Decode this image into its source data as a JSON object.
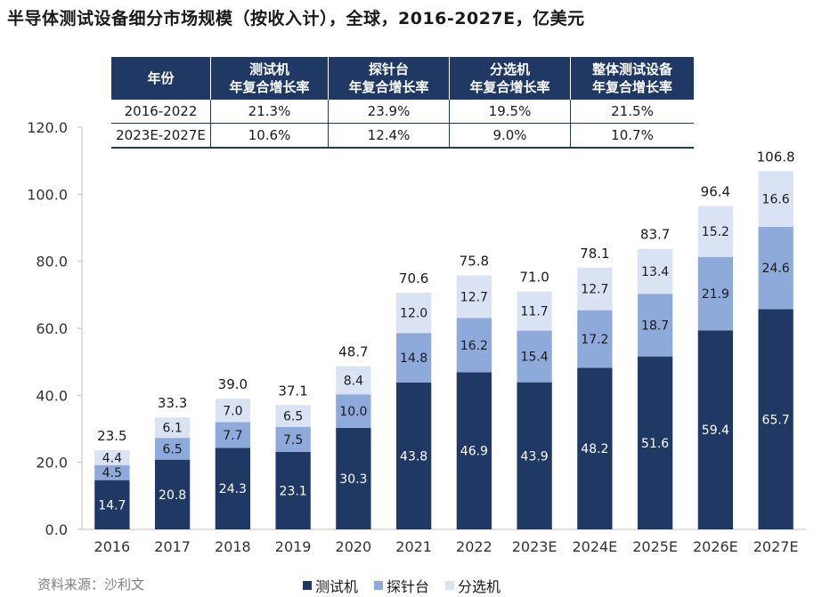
{
  "title": "半导体测试设备细分市场规模（按收入计），全球，2016-2027E，亿美元",
  "source": "资料来源：沙利文",
  "colors": {
    "tester": "#1f3864",
    "prober": "#8eaadb",
    "handler": "#dae3f3",
    "header_bg": "#1f3864"
  },
  "cagr_table": {
    "headers": [
      "年份",
      "测试机\n年复合增长率",
      "探针台\n年复合增长率",
      "分选机\n年复合增长率",
      "整体测试设备\n年复合增长率"
    ],
    "rows": [
      [
        "2016-2022",
        "21.3%",
        "23.9%",
        "19.5%",
        "21.5%"
      ],
      [
        "2023E-2027E",
        "10.6%",
        "12.4%",
        "9.0%",
        "10.7%"
      ]
    ]
  },
  "chart_data": {
    "type": "bar",
    "stacked": true,
    "categories": [
      "2016",
      "2017",
      "2018",
      "2019",
      "2020",
      "2021",
      "2022",
      "2023E",
      "2024E",
      "2025E",
      "2026E",
      "2027E"
    ],
    "series": [
      {
        "name": "测试机",
        "values": [
          14.7,
          20.8,
          24.3,
          23.1,
          30.3,
          43.8,
          46.9,
          43.9,
          48.2,
          51.6,
          59.4,
          65.7
        ]
      },
      {
        "name": "探针台",
        "values": [
          4.5,
          6.5,
          7.7,
          7.5,
          10.0,
          14.8,
          16.2,
          15.4,
          17.2,
          18.7,
          21.9,
          24.6
        ]
      },
      {
        "name": "分选机",
        "values": [
          4.4,
          6.1,
          7.0,
          6.5,
          8.4,
          12.0,
          12.7,
          11.7,
          12.7,
          13.4,
          15.2,
          16.6
        ]
      }
    ],
    "totals": [
      "23.5",
      "33.3",
      "39.0",
      "37.1",
      "48.7",
      "70.6",
      "75.8",
      "71.0",
      "78.1",
      "83.7",
      "96.4",
      "106.8"
    ],
    "yticks": [
      "0.0",
      "20.0",
      "40.0",
      "60.0",
      "80.0",
      "100.0",
      "120.0"
    ],
    "ylim": [
      0,
      120
    ],
    "grid": false,
    "legend_position": "bottom"
  }
}
